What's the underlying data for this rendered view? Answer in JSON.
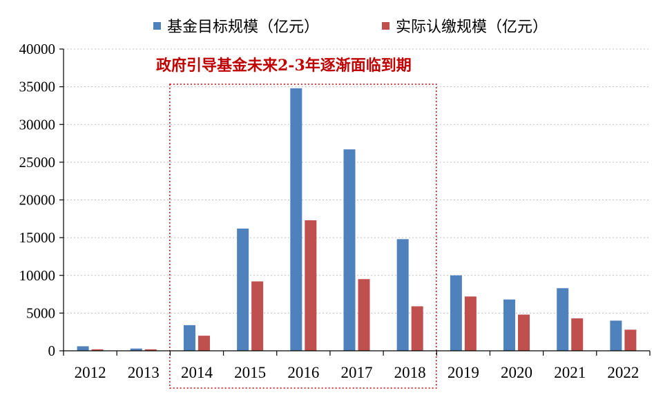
{
  "chart_data": {
    "type": "bar",
    "categories": [
      "2012",
      "2013",
      "2014",
      "2015",
      "2016",
      "2017",
      "2018",
      "2019",
      "2020",
      "2021",
      "2022"
    ],
    "series": [
      {
        "name": "基金目标规模（亿元）",
        "color": "#4f81bd",
        "values": [
          600,
          300,
          3400,
          16200,
          34800,
          26700,
          14800,
          10000,
          6800,
          8300,
          4000
        ]
      },
      {
        "name": "实际认缴规模（亿元）",
        "color": "#c0504d",
        "values": [
          200,
          200,
          2000,
          9200,
          17300,
          9500,
          5900,
          7200,
          4800,
          4300,
          2800
        ]
      }
    ],
    "ylim": [
      0,
      40000
    ],
    "yticks": [
      0,
      5000,
      10000,
      15000,
      20000,
      25000,
      30000,
      35000,
      40000
    ],
    "grid": true,
    "legend_position": "top",
    "annotation": {
      "text": "政府引导基金未来2-3年逐渐面临到期",
      "color": "#c00000",
      "highlight_categories": [
        "2014",
        "2018"
      ]
    }
  }
}
